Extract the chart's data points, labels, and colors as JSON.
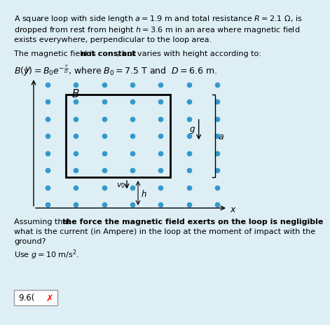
{
  "bg_color": "#ddeef5",
  "dot_color": "#3399cc",
  "dot_rows": 8,
  "dot_cols": 7,
  "line1": "A square loop with side length $a = 1.9$ m and total resistance $R = 2.1$ $\\Omega$, is",
  "line2": "dropped from rest from height $h = 3.6$ m in an area where magnetic field",
  "line3": "exists everywhere, perpendicular to the loop area.",
  "line4a": "The magnetic field is ",
  "line4b": "not constant",
  "line4c": ", but varies with height according to:",
  "line5": "$B(y) = B_0e^{-\\frac{y}{D}}$, where $B_0 = 7.5$ T and  $D = 6.6$ m.",
  "line6": "Assuming that ",
  "line6b": "the force the magnetic field exerts on the loop is negligible",
  "line6c": ",",
  "line7": "what is the current (in Ampere) in the loop at the moment of impact with the",
  "line8": "ground?",
  "line9": "Use $g = 10$ m/s$^2$.",
  "answer": "9.6(",
  "font_size": 8.0,
  "formula_size": 9.0
}
